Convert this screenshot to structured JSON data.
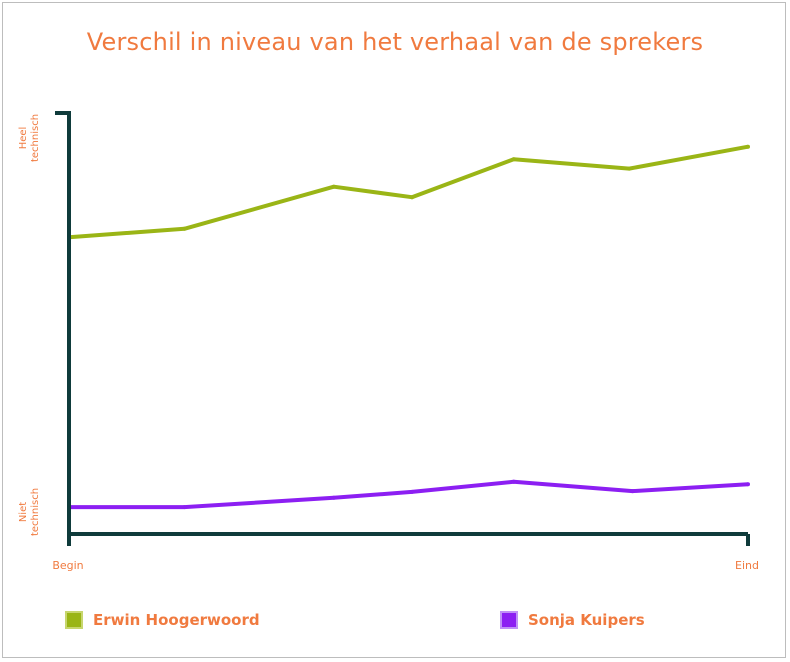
{
  "chart_data": {
    "type": "line",
    "title": "Verschil in niveau van het verhaal van de sprekers",
    "x_axis": {
      "start_label": "Begin",
      "end_label": "Eind",
      "range": [
        0,
        1
      ]
    },
    "y_axis": {
      "top_label": "Heel technisch",
      "bottom_label": "Niet technisch",
      "range": [
        0,
        1
      ]
    },
    "grid": false,
    "legend_placement": "bottom",
    "series": [
      {
        "name": "Erwin Hoogerwoord",
        "color": "#9ab516",
        "points": [
          [
            0.0,
            0.705
          ],
          [
            0.17,
            0.725
          ],
          [
            0.39,
            0.825
          ],
          [
            0.505,
            0.8
          ],
          [
            0.655,
            0.89
          ],
          [
            0.825,
            0.868
          ],
          [
            1.0,
            0.92
          ]
        ]
      },
      {
        "name": "Sonja Kuipers",
        "color": "#8c1ff2",
        "points": [
          [
            0.0,
            0.064
          ],
          [
            0.17,
            0.064
          ],
          [
            0.39,
            0.086
          ],
          [
            0.505,
            0.1
          ],
          [
            0.655,
            0.124
          ],
          [
            0.83,
            0.102
          ],
          [
            1.0,
            0.118
          ]
        ]
      }
    ]
  }
}
